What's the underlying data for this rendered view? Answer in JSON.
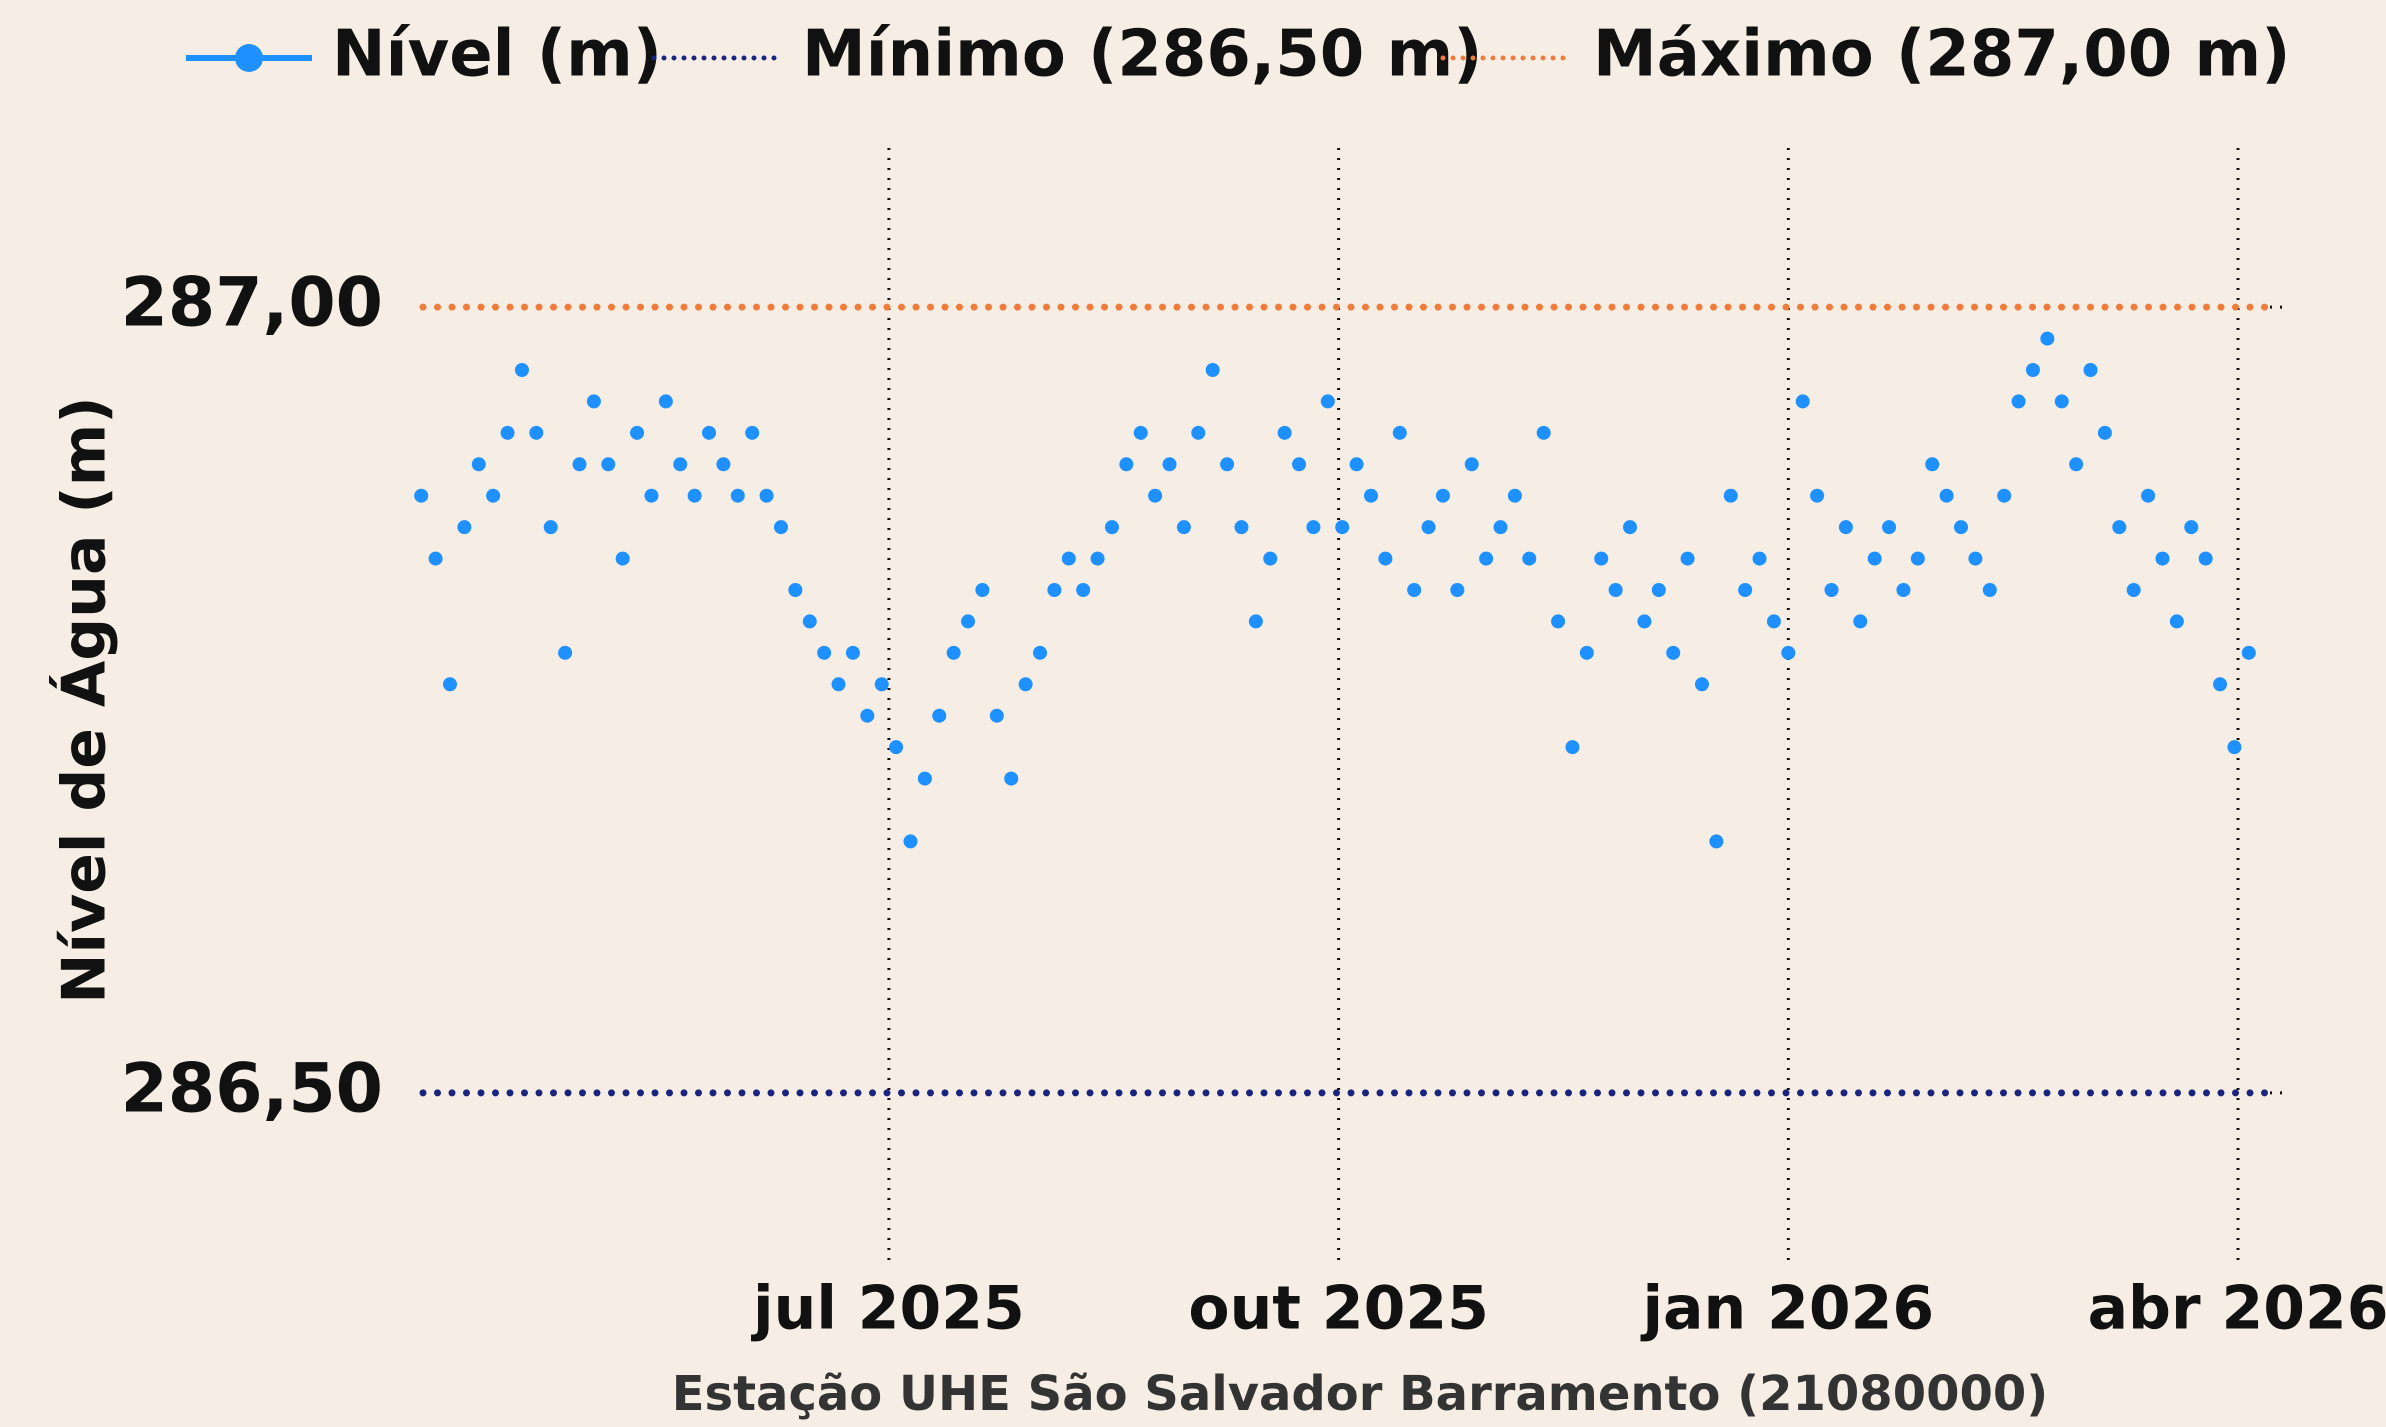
{
  "chart_data": {
    "type": "scatter",
    "ylabel": "Nível de Água (m)",
    "xlabel": "Estação UHE São Salvador Barramento (21080000)",
    "xlim": [
      2025.241,
      2026.275
    ],
    "xticks": [
      {
        "value": 2025.5,
        "label": "jul 2025"
      },
      {
        "value": 2025.75,
        "label": "out 2025"
      },
      {
        "value": 2026.0,
        "label": "jan 2026"
      },
      {
        "value": 2026.25,
        "label": "abr 2026"
      }
    ],
    "xgrid": true,
    "ylim": [
      286.4,
      287.1
    ],
    "yticks": [
      {
        "value": 286.5,
        "label": "286,50"
      },
      {
        "value": 287.0,
        "label": "287,00"
      }
    ],
    "series": [
      {
        "name": "Nível (m)",
        "color": "#1e90ff",
        "x": [
          2025.24,
          2025.248,
          2025.256,
          2025.264,
          2025.272,
          2025.28,
          2025.288,
          2025.296,
          2025.304,
          2025.312,
          2025.32,
          2025.328,
          2025.336,
          2025.344,
          2025.352,
          2025.36,
          2025.368,
          2025.376,
          2025.384,
          2025.392,
          2025.4,
          2025.408,
          2025.416,
          2025.424,
          2025.432,
          2025.44,
          2025.448,
          2025.456,
          2025.464,
          2025.472,
          2025.48,
          2025.488,
          2025.496,
          2025.504,
          2025.512,
          2025.52,
          2025.528,
          2025.536,
          2025.544,
          2025.552,
          2025.56,
          2025.568,
          2025.576,
          2025.584,
          2025.592,
          2025.6,
          2025.608,
          2025.616,
          2025.624,
          2025.632,
          2025.64,
          2025.648,
          2025.656,
          2025.664,
          2025.672,
          2025.68,
          2025.688,
          2025.696,
          2025.704,
          2025.712,
          2025.72,
          2025.728,
          2025.736,
          2025.744,
          2025.752,
          2025.76,
          2025.768,
          2025.776,
          2025.784,
          2025.792,
          2025.8,
          2025.808,
          2025.816,
          2025.824,
          2025.832,
          2025.84,
          2025.848,
          2025.856,
          2025.864,
          2025.872,
          2025.88,
          2025.888,
          2025.896,
          2025.904,
          2025.912,
          2025.92,
          2025.928,
          2025.936,
          2025.944,
          2025.952,
          2025.96,
          2025.968,
          2025.976,
          2025.984,
          2025.992,
          2026.0,
          2026.008,
          2026.016,
          2026.024,
          2026.032,
          2026.04,
          2026.048,
          2026.056,
          2026.064,
          2026.072,
          2026.08,
          2026.088,
          2026.096,
          2026.104,
          2026.112,
          2026.12,
          2026.128,
          2026.136,
          2026.144,
          2026.152,
          2026.16,
          2026.168,
          2026.176,
          2026.184,
          2026.192,
          2026.2,
          2026.208,
          2026.216,
          2026.224,
          2026.232,
          2026.24,
          2026.248,
          2026.256
        ],
        "values": [
          286.88,
          286.84,
          286.76,
          286.86,
          286.9,
          286.88,
          286.92,
          286.96,
          286.92,
          286.86,
          286.78,
          286.9,
          286.94,
          286.9,
          286.84,
          286.92,
          286.88,
          286.94,
          286.9,
          286.88,
          286.92,
          286.9,
          286.88,
          286.92,
          286.88,
          286.86,
          286.82,
          286.8,
          286.78,
          286.76,
          286.78,
          286.74,
          286.76,
          286.72,
          286.66,
          286.7,
          286.74,
          286.78,
          286.8,
          286.82,
          286.74,
          286.7,
          286.76,
          286.78,
          286.82,
          286.84,
          286.82,
          286.84,
          286.86,
          286.9,
          286.92,
          286.88,
          286.9,
          286.86,
          286.92,
          286.96,
          286.9,
          286.86,
          286.8,
          286.84,
          286.92,
          286.9,
          286.86,
          286.94,
          286.86,
          286.9,
          286.88,
          286.84,
          286.92,
          286.82,
          286.86,
          286.88,
          286.82,
          286.9,
          286.84,
          286.86,
          286.88,
          286.84,
          286.92,
          286.8,
          286.72,
          286.78,
          286.84,
          286.82,
          286.86,
          286.8,
          286.82,
          286.78,
          286.84,
          286.76,
          286.66,
          286.88,
          286.82,
          286.84,
          286.8,
          286.78,
          286.94,
          286.88,
          286.82,
          286.86,
          286.8,
          286.84,
          286.86,
          286.82,
          286.84,
          286.9,
          286.88,
          286.86,
          286.84,
          286.82,
          286.88,
          286.94,
          286.96,
          286.98,
          286.94,
          286.9,
          286.96,
          286.92,
          286.86,
          286.82,
          286.88,
          286.84,
          286.8,
          286.86,
          286.84,
          286.76,
          286.72,
          286.78
        ]
      }
    ],
    "reference_lines": [
      {
        "name": "Mínimo (286,50 m)",
        "value": 286.5,
        "color": "#1a237e"
      },
      {
        "name": "Máximo (287,00 m)",
        "value": 287.0,
        "color": "#f07c3c"
      }
    ]
  }
}
